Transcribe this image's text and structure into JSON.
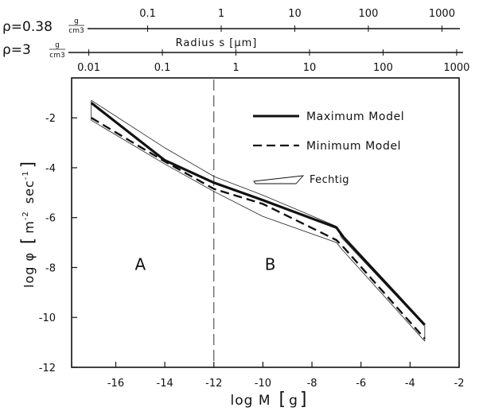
{
  "chart_data": {
    "type": "line",
    "xlabel": "log M",
    "xlabel_unit": "g",
    "ylabel": "log φ",
    "ylabel_unit_base": "m",
    "ylabel_unit_exp1": "-2",
    "ylabel_unit_mid": "sec",
    "ylabel_unit_exp2": "-1",
    "xlim": [
      -17.8,
      -2
    ],
    "ylim": [
      -12,
      -0.4
    ],
    "x_ticks": [
      -16,
      -14,
      -12,
      -10,
      -8,
      -6,
      -4,
      -2
    ],
    "y_ticks": [
      -2,
      -4,
      -6,
      -8,
      -10,
      -12
    ],
    "x_tick_labels": [
      "-16",
      "-14",
      "-12",
      "-10",
      "-8",
      "-6",
      "-4",
      "-2"
    ],
    "y_tick_labels": [
      "-2",
      "-4",
      "-6",
      "-8",
      "-10",
      "-12"
    ],
    "grid": false,
    "legend_position": "top-right",
    "vertical_reference_x": -12,
    "region_labels": [
      {
        "text": "A",
        "x": -15.0,
        "y": -8.1
      },
      {
        "text": "B",
        "x": -9.7,
        "y": -8.1
      }
    ],
    "series": [
      {
        "name": "Maximum Model",
        "style": "solid-thick",
        "x": [
          -17,
          -14,
          -12,
          -10,
          -7,
          -6.7,
          -3.4
        ],
        "y": [
          -1.4,
          -3.7,
          -4.6,
          -5.3,
          -6.4,
          -6.8,
          -10.3
        ]
      },
      {
        "name": "Minimum Model",
        "style": "dashed",
        "x": [
          -17,
          -14,
          -12,
          -10,
          -7,
          -6.7,
          -3.4
        ],
        "y": [
          -2.0,
          -3.75,
          -4.85,
          -5.45,
          -6.9,
          -7.2,
          -10.85
        ]
      }
    ],
    "band": {
      "name": "Fechtig",
      "upper": {
        "x": [
          -17,
          -14,
          -12,
          -10,
          -7,
          -6.8,
          -3.4
        ],
        "y": [
          -1.3,
          -3.2,
          -4.35,
          -5.1,
          -6.35,
          -6.8,
          -10.35
        ]
      },
      "lower": {
        "x": [
          -17,
          -14,
          -12,
          -10,
          -7,
          -6.8,
          -3.4
        ],
        "y": [
          -2.1,
          -3.85,
          -4.95,
          -5.95,
          -7.0,
          -7.25,
          -10.95
        ]
      }
    },
    "top_axes": [
      {
        "rho_label": "ρ=0.38",
        "unit_numer": "g",
        "unit_denom": "cm3",
        "ticks": [
          "0.1",
          "1",
          "10",
          "100",
          "1000"
        ],
        "tick_log_m": [
          -14.7,
          -11.7,
          -8.7,
          -5.7,
          -2.7
        ]
      },
      {
        "rho_label": "ρ=3",
        "unit_numer": "g",
        "unit_denom": "cm3",
        "title": "Radius  s [μm]",
        "ticks": [
          "0.01",
          "0.1",
          "1",
          "10",
          "100",
          "1000"
        ],
        "tick_log_m": [
          -17.1,
          -14.1,
          -11.1,
          -8.1,
          -5.1,
          -2.1
        ]
      }
    ]
  }
}
